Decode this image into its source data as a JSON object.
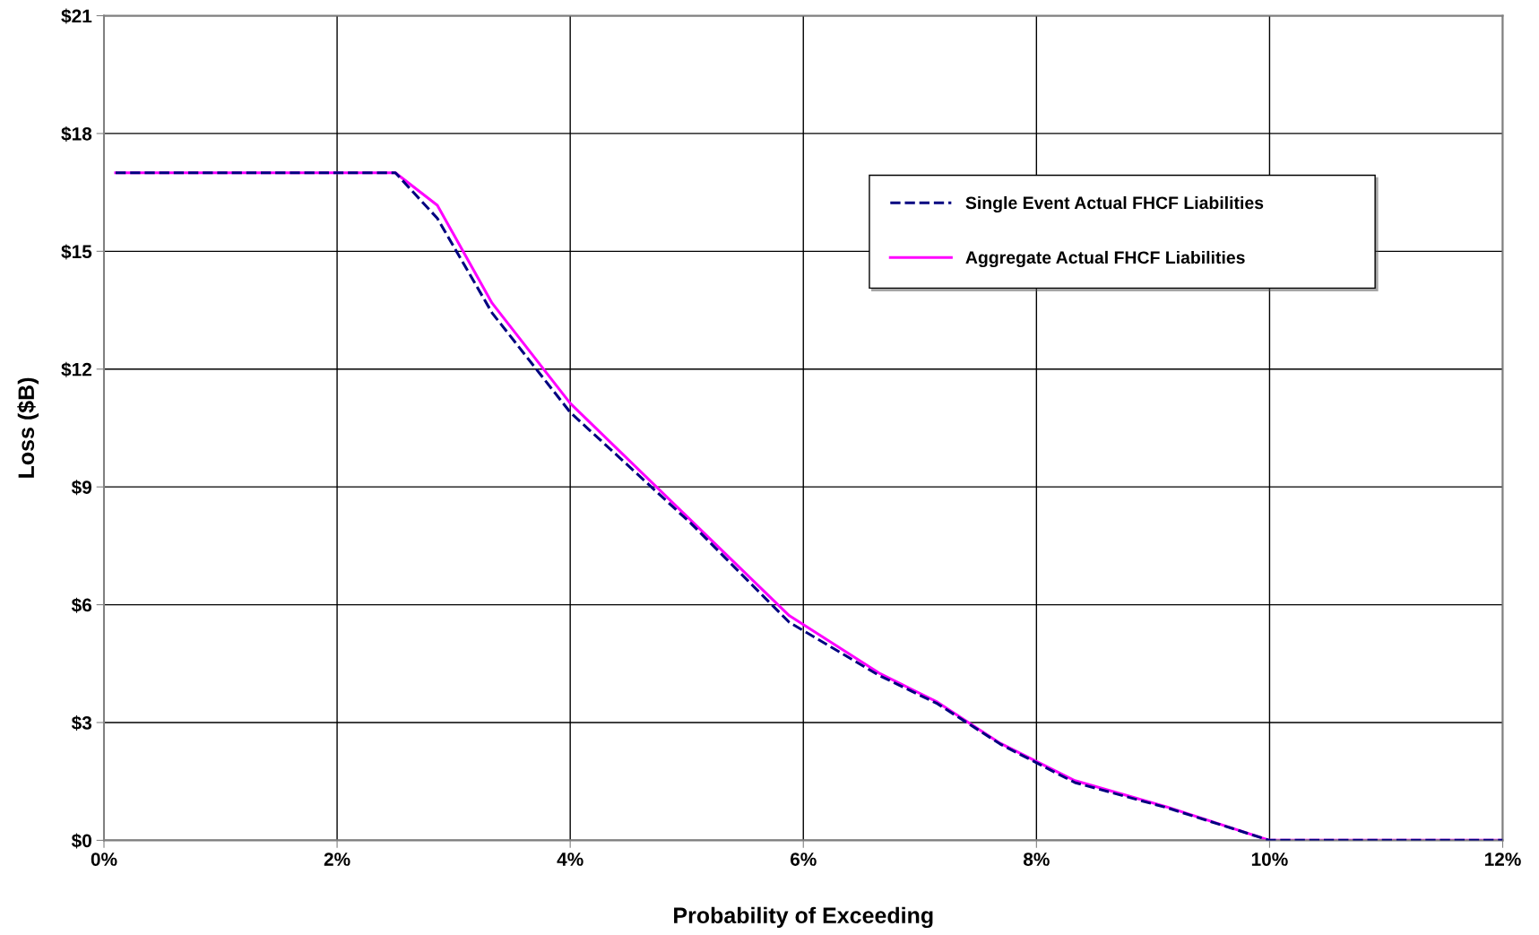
{
  "chart_data": {
    "type": "line",
    "xlabel": "Probability of Exceeding",
    "ylabel": "Loss ($B)",
    "xlim": [
      0,
      12
    ],
    "ylim": [
      0,
      21
    ],
    "xticks": [
      {
        "value": 0,
        "label": "0%"
      },
      {
        "value": 2,
        "label": "2%"
      },
      {
        "value": 4,
        "label": "4%"
      },
      {
        "value": 6,
        "label": "6%"
      },
      {
        "value": 8,
        "label": "8%"
      },
      {
        "value": 10,
        "label": "10%"
      },
      {
        "value": 12,
        "label": "12%"
      }
    ],
    "yticks": [
      {
        "value": 0,
        "label": "$0"
      },
      {
        "value": 3,
        "label": "$3"
      },
      {
        "value": 6,
        "label": "$6"
      },
      {
        "value": 9,
        "label": "$9"
      },
      {
        "value": 12,
        "label": "$12"
      },
      {
        "value": 15,
        "label": "$15"
      },
      {
        "value": 18,
        "label": "$18"
      },
      {
        "value": 21,
        "label": "$21"
      }
    ],
    "grid": true,
    "legend": "top right",
    "series": [
      {
        "name": "Single Event Actual FHCF Liabilities",
        "color": "#000080",
        "line_style": "dashed",
        "x": [
          0.1,
          2.5,
          2.86,
          3.33,
          4.0,
          5.04,
          5.88,
          6.65,
          7.15,
          7.69,
          8.33,
          9.12,
          10.0,
          12.0
        ],
        "values": [
          17.0,
          17.0,
          15.84,
          13.43,
          10.9,
          8.06,
          5.55,
          4.2,
          3.48,
          2.45,
          1.47,
          0.83,
          0,
          0
        ]
      },
      {
        "name": "Aggregate Actual FHCF Liabilities",
        "color": "#ff00ff",
        "line_style": "solid",
        "x": [
          0.1,
          2.5,
          2.86,
          3.33,
          4.0,
          5.88,
          6.65,
          7.15,
          7.69,
          8.33,
          9.12,
          10.0,
          12.0
        ],
        "values": [
          17.0,
          17.0,
          16.17,
          13.68,
          11.13,
          5.72,
          4.26,
          3.52,
          2.47,
          1.52,
          0.85,
          0,
          0
        ]
      }
    ]
  }
}
